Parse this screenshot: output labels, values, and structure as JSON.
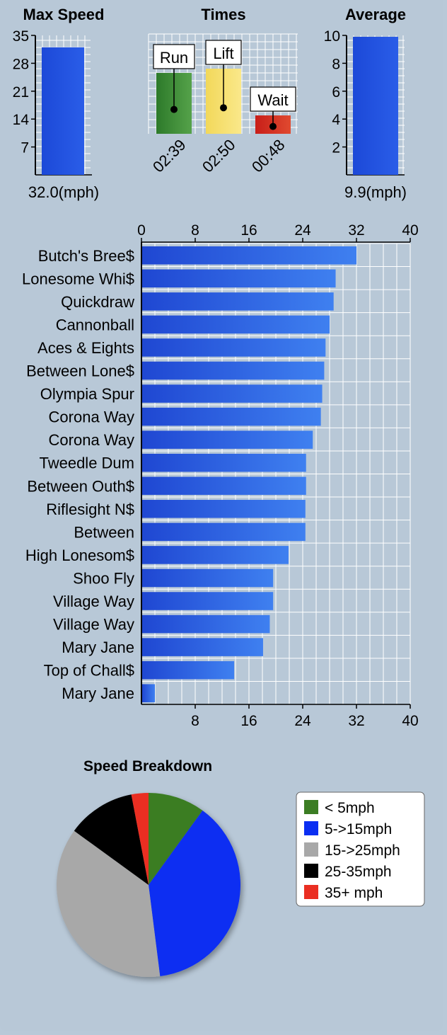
{
  "colors": {
    "bar_blue": "#1f4fd6",
    "bar_blue_light": "#3f7ff0",
    "run_green": "#3d8a33",
    "lift_yellow": "#f5dc63",
    "wait_red": "#d2241b",
    "pie_green": "#3b7d23",
    "pie_blue": "#0a2ef2",
    "pie_gray": "#a8a8a8",
    "pie_black": "#000000",
    "pie_red": "#ea2e22",
    "grid": "#ffffff",
    "panel": "#b8c8d7"
  },
  "chart_data": [
    {
      "type": "bar",
      "title": "Max Speed",
      "yticks": [
        "35",
        "28",
        "21",
        "14",
        "7"
      ],
      "ylim": [
        0,
        35
      ],
      "values": [
        32.0
      ],
      "value_label": "32.0(mph)"
    },
    {
      "type": "bar",
      "title": "Times",
      "categories": [
        "Run",
        "Lift",
        "Wait"
      ],
      "time_labels": [
        "02:39",
        "02:50",
        "00:48"
      ],
      "values": [
        159,
        170,
        48
      ],
      "value_unit": "seconds",
      "ylim": [
        0,
        170
      ]
    },
    {
      "type": "bar",
      "title": "Average",
      "yticks": [
        "10",
        "8",
        "6",
        "4",
        "2"
      ],
      "ylim": [
        0,
        10
      ],
      "values": [
        9.9
      ],
      "value_label": "9.9(mph)"
    },
    {
      "type": "bar",
      "orientation": "horizontal",
      "top_ticks": [
        "0",
        "8",
        "16",
        "24",
        "32",
        "40"
      ],
      "bottom_ticks": [
        "8",
        "16",
        "24",
        "32",
        "40"
      ],
      "xlim": [
        0,
        40
      ],
      "categories": [
        "Butch's Bree$",
        "Lonesome Whi$",
        "Quickdraw",
        "Cannonball",
        "Aces & Eights",
        "Between Lone$",
        "Olympia Spur",
        "Corona Way",
        "Corona Way",
        "Tweedle Dum",
        "Between Outh$",
        "Riflesight N$",
        "Between",
        "High Lonesom$",
        "Shoo Fly",
        "Village Way",
        "Village Way",
        "Mary Jane",
        "Top of Chall$",
        "Mary Jane"
      ],
      "values": [
        32.0,
        28.9,
        28.6,
        28.0,
        27.4,
        27.2,
        26.9,
        26.7,
        25.5,
        24.5,
        24.5,
        24.4,
        24.4,
        21.9,
        19.6,
        19.6,
        19.1,
        18.1,
        13.8,
        2.0
      ],
      "grid": true
    },
    {
      "type": "pie",
      "title": "Speed Breakdown",
      "labels": [
        "< 5mph",
        "5->15mph",
        "15->25mph",
        "25-35mph",
        "35+ mph"
      ],
      "values": [
        10,
        38,
        37,
        12,
        3
      ],
      "legend": "right"
    }
  ]
}
